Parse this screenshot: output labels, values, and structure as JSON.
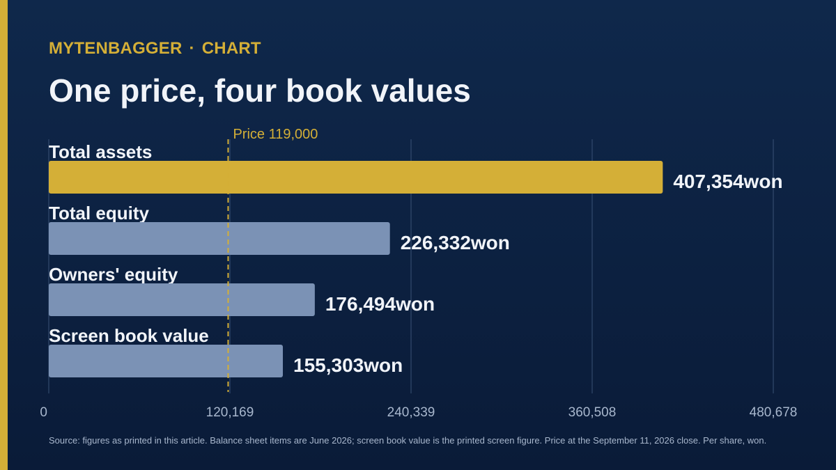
{
  "header": {
    "brand": "MYTENBAGGER",
    "separator": "·",
    "section": "CHART"
  },
  "chart_data": {
    "type": "bar",
    "orientation": "horizontal",
    "title": "One price, four book values",
    "categories": [
      "Total assets",
      "Total equity",
      "Owners' equity",
      "Screen book value"
    ],
    "values": [
      407354,
      226332,
      176494,
      155303
    ],
    "value_labels": [
      "407,354won",
      "226,332won",
      "176,494won",
      "155,303won"
    ],
    "xlim": [
      0,
      480678
    ],
    "ticks": [
      0,
      120169,
      240339,
      360508,
      480678
    ],
    "tick_labels": [
      "0",
      "120,169",
      "240,339",
      "360,508",
      "480,678"
    ],
    "grid": true,
    "reference_line": {
      "value": 119000,
      "label": "Price 119,000"
    },
    "colors": {
      "highlight": "#d4af37",
      "default": "#7b92b5",
      "reference": "#d4af37"
    },
    "highlight_index": 0
  },
  "footer": {
    "source": "Source: figures as printed in this article. Balance sheet items are June 2026; screen book value is the printed screen figure. Price at the September 11, 2026 close. Per share, won."
  }
}
